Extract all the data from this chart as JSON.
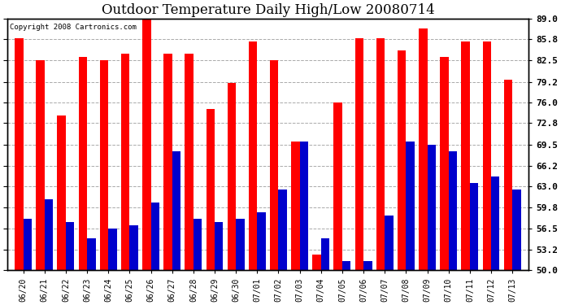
{
  "title": "Outdoor Temperature Daily High/Low 20080714",
  "copyright": "Copyright 2008 Cartronics.com",
  "categories": [
    "06/20",
    "06/21",
    "06/22",
    "06/23",
    "06/24",
    "06/25",
    "06/26",
    "06/27",
    "06/28",
    "06/29",
    "06/30",
    "07/01",
    "07/02",
    "07/03",
    "07/04",
    "07/05",
    "07/06",
    "07/07",
    "07/08",
    "07/09",
    "07/10",
    "07/11",
    "07/12",
    "07/13"
  ],
  "highs": [
    86.0,
    82.5,
    74.0,
    83.0,
    82.5,
    83.5,
    89.0,
    83.5,
    83.5,
    75.0,
    79.0,
    85.5,
    82.5,
    70.0,
    52.5,
    76.0,
    86.0,
    86.0,
    84.0,
    87.5,
    83.0,
    85.5,
    85.5,
    79.5
  ],
  "lows": [
    58.0,
    61.0,
    57.5,
    55.0,
    56.5,
    57.0,
    60.5,
    68.5,
    58.0,
    57.5,
    58.0,
    59.0,
    62.5,
    70.0,
    55.0,
    51.5,
    51.5,
    58.5,
    70.0,
    69.5,
    68.5,
    63.5,
    64.5,
    62.5
  ],
  "high_color": "#FF0000",
  "low_color": "#0000CC",
  "background_color": "#FFFFFF",
  "grid_color": "#AAAAAA",
  "ylabel_right": [
    "50.0",
    "53.2",
    "56.5",
    "59.8",
    "63.0",
    "66.2",
    "69.5",
    "72.8",
    "76.0",
    "79.2",
    "82.5",
    "85.8",
    "89.0"
  ],
  "ymin": 50.0,
  "ymax": 89.0,
  "bar_width": 0.4,
  "title_fontsize": 12,
  "tick_fontsize": 7,
  "ytick_fontsize": 8
}
